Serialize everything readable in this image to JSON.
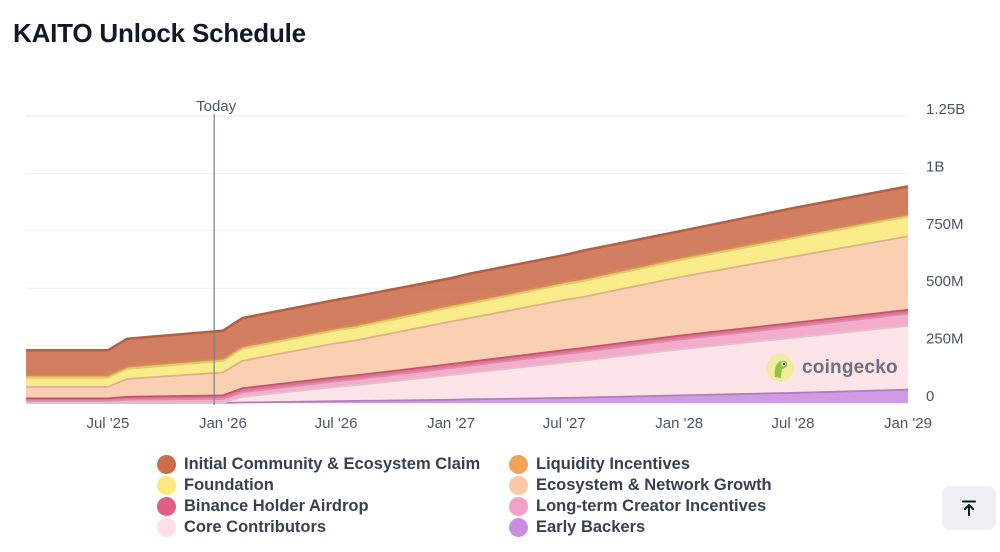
{
  "page": {
    "title": "KAITO Unlock Schedule"
  },
  "chart_data": {
    "type": "area",
    "stacked": true,
    "title": "KAITO Unlock Schedule",
    "x_ticks": [
      "Jul '25",
      "Jan '26",
      "Jul '26",
      "Jan '27",
      "Jul '27",
      "Jan '28",
      "Jul '28",
      "Jan '29"
    ],
    "y_ticks": [
      "0",
      "250M",
      "500M",
      "750M",
      "1B",
      "1.25B"
    ],
    "ylim": [
      0,
      1250000000
    ],
    "x_range": [
      "2025-02-20",
      "2029-01-01"
    ],
    "today_marker": {
      "label": "Today",
      "date": "2025-12-18"
    },
    "dates": [
      "2025-02-20",
      "2025-07-01",
      "2025-08-01",
      "2025-12-31",
      "2026-01-01",
      "2026-02-01",
      "2026-07-01",
      "2026-08-01",
      "2027-01-01",
      "2027-02-01",
      "2027-07-01",
      "2027-08-01",
      "2028-01-01",
      "2028-07-01",
      "2029-01-01"
    ],
    "series": [
      {
        "name": "Early Backers",
        "color": "#c98de0",
        "values": [
          0,
          0,
          0,
          0,
          0,
          2000000,
          8000000,
          9000000,
          14000000,
          16000000,
          22000000,
          24000000,
          33000000,
          44000000,
          58000000
        ]
      },
      {
        "name": "Core Contributors",
        "color": "#fde0e6",
        "values": [
          0,
          0,
          0,
          0,
          0,
          25000000,
          62000000,
          68000000,
          108000000,
          115000000,
          154000000,
          161000000,
          200000000,
          240000000,
          278000000
        ]
      },
      {
        "name": "Long-term Creator Incentives",
        "color": "#f3a0c6",
        "values": [
          10000000,
          10000000,
          15000000,
          18000000,
          18000000,
          20000000,
          25000000,
          26000000,
          31000000,
          32000000,
          37000000,
          38000000,
          43000000,
          48000000,
          53000000
        ]
      },
      {
        "name": "Binance Holder Airdrop",
        "color": "#de5f81",
        "values": [
          10000000,
          10000000,
          12000000,
          15000000,
          15000000,
          17000000,
          17000000,
          17000000,
          17000000,
          17000000,
          17000000,
          17000000,
          17000000,
          17000000,
          17000000
        ]
      },
      {
        "name": "Ecosystem & Network Growth",
        "color": "#fbc8a6",
        "values": [
          50000000,
          50000000,
          78000000,
          100000000,
          100000000,
          120000000,
          148000000,
          152000000,
          185000000,
          190000000,
          219000000,
          222000000,
          255000000,
          288000000,
          320000000
        ]
      },
      {
        "name": "Foundation",
        "color": "#fbe97b",
        "values": [
          40000000,
          40000000,
          44000000,
          50000000,
          50000000,
          52000000,
          56000000,
          57000000,
          62000000,
          63000000,
          68000000,
          69000000,
          74000000,
          80000000,
          86000000
        ]
      },
      {
        "name": "Liquidity Incentives",
        "color": "#f0a257",
        "values": [
          10000000,
          10000000,
          10000000,
          10000000,
          10000000,
          10000000,
          10000000,
          10000000,
          10000000,
          10000000,
          10000000,
          10000000,
          10000000,
          10000000,
          10000000
        ]
      },
      {
        "name": "Initial Community & Ecosystem Claim",
        "color": "#cc6c4b",
        "values": [
          110000000,
          110000000,
          121000000,
          122000000,
          122000000,
          124000000,
          123000000,
          125000000,
          117000000,
          121000000,
          117000000,
          123000000,
          116000000,
          122000000,
          122000000
        ]
      }
    ]
  },
  "legend": {
    "items": [
      {
        "label": "Initial Community & Ecosystem Claim",
        "color": "#cc6c4b"
      },
      {
        "label": "Liquidity Incentives",
        "color": "#f0a257"
      },
      {
        "label": "Foundation",
        "color": "#fbe97b"
      },
      {
        "label": "Ecosystem & Network Growth",
        "color": "#fbc8a6"
      },
      {
        "label": "Binance Holder Airdrop",
        "color": "#de5f81"
      },
      {
        "label": "Long-term Creator Incentives",
        "color": "#f3a0c6"
      },
      {
        "label": "Core Contributors",
        "color": "#fde0e6"
      },
      {
        "label": "Early Backers",
        "color": "#c98de0"
      }
    ]
  },
  "watermark": {
    "text": "coingecko",
    "icon": "coingecko-logo-icon"
  },
  "scroll_top": {
    "icon": "arrow-up-to-line-icon"
  }
}
